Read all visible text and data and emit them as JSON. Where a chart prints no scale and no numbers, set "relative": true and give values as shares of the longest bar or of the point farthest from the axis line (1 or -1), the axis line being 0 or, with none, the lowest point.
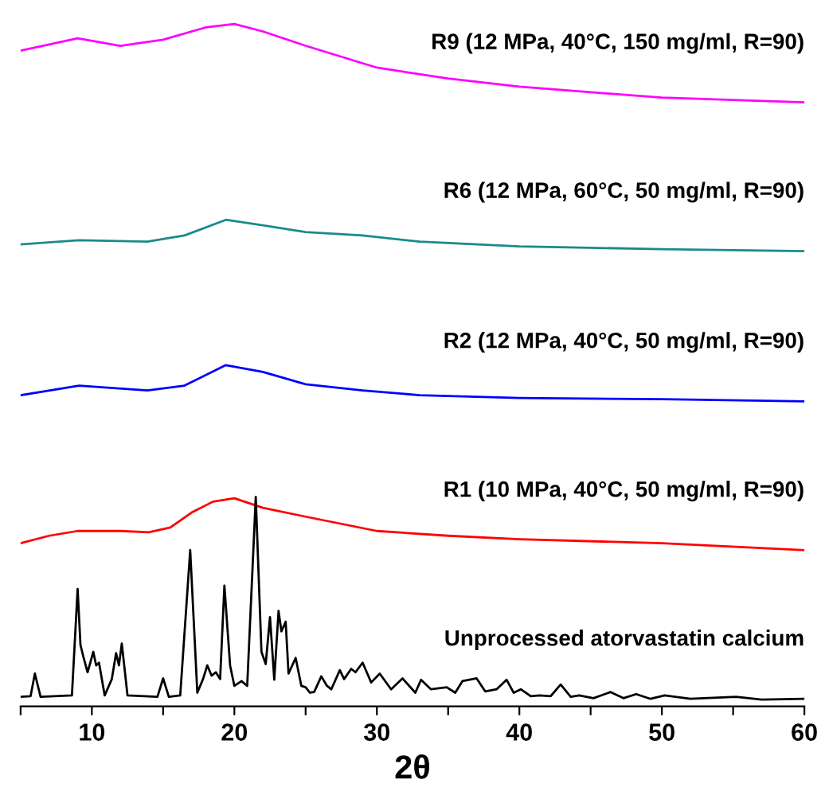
{
  "chart_data": {
    "type": "line",
    "relative": true,
    "xlabel": "2θ",
    "xlim": [
      5,
      60
    ],
    "xticks": [
      {
        "value": 5,
        "label": null
      },
      10,
      {
        "value": 15,
        "label": null
      },
      20,
      {
        "value": 25,
        "label": null
      },
      30,
      {
        "value": 35,
        "label": null
      },
      40,
      {
        "value": 45,
        "label": null
      },
      50,
      {
        "value": 55,
        "label": null
      },
      60
    ],
    "grid": false,
    "legend": false,
    "marker": "none",
    "line_style": "solid",
    "series": [
      {
        "name": "R9 (12 MPa, 40°C, 150 mg/ml, R=90)",
        "color": "#ff00ff",
        "x": [
          5,
          9,
          12,
          15,
          18,
          20,
          22,
          25,
          30,
          35,
          40,
          50,
          60
        ],
        "values": [
          0.961,
          0.979,
          0.968,
          0.977,
          0.995,
          1.0,
          0.989,
          0.968,
          0.936,
          0.92,
          0.908,
          0.892,
          0.885
        ]
      },
      {
        "name": "R6 (12 MPa, 60°C, 50 mg/ml, R=90)",
        "color": "#1a8a8a",
        "x": [
          5,
          9.1,
          13.9,
          16.5,
          19.4,
          22,
          25,
          29,
          33,
          40,
          50,
          60
        ],
        "values": [
          0.677,
          0.683,
          0.681,
          0.69,
          0.713,
          0.705,
          0.695,
          0.69,
          0.681,
          0.674,
          0.67,
          0.667
        ]
      },
      {
        "name": "R2 (12 MPa, 40°C, 50 mg/ml, R=90)",
        "color": "#0000ff",
        "x": [
          5,
          9.1,
          13.9,
          16.5,
          19.4,
          22,
          25,
          29,
          33,
          40,
          50,
          60
        ],
        "values": [
          0.456,
          0.47,
          0.463,
          0.47,
          0.5,
          0.49,
          0.472,
          0.463,
          0.456,
          0.452,
          0.45,
          0.447
        ]
      },
      {
        "name": "R1 (10 MPa, 40°C, 50 mg/ml, R=90)",
        "color": "#ff0000",
        "x": [
          5,
          7,
          9,
          12,
          14,
          15.5,
          17,
          18.5,
          20,
          22,
          25,
          30,
          35,
          40,
          50,
          60
        ],
        "values": [
          0.239,
          0.25,
          0.257,
          0.257,
          0.255,
          0.262,
          0.284,
          0.3,
          0.305,
          0.291,
          0.278,
          0.257,
          0.25,
          0.245,
          0.239,
          0.229
        ]
      },
      {
        "name": "Unprocessed atorvastatin calcium",
        "color": "#000000",
        "x": [
          5.0,
          5.7,
          6.0,
          6.4,
          8.6,
          9.0,
          9.2,
          9.4,
          9.7,
          10.1,
          10.3,
          10.5,
          10.9,
          11.4,
          11.7,
          11.9,
          12.1,
          12.5,
          14.6,
          15.0,
          15.4,
          16.2,
          16.9,
          17.4,
          17.8,
          18.1,
          18.4,
          18.7,
          19.0,
          19.3,
          19.7,
          20.0,
          20.5,
          20.9,
          21.5,
          21.9,
          22.2,
          22.5,
          22.8,
          23.1,
          23.3,
          23.6,
          23.8,
          24.3,
          24.7,
          25.0,
          25.3,
          25.6,
          26.1,
          26.5,
          26.8,
          27.4,
          27.7,
          28.2,
          28.5,
          29.0,
          29.6,
          30.2,
          31.0,
          31.8,
          32.7,
          33.1,
          33.8,
          34.9,
          35.5,
          36.0,
          37.0,
          37.6,
          38.4,
          39.1,
          39.6,
          40.1,
          40.8,
          41.4,
          42.2,
          42.9,
          43.6,
          44.2,
          45.2,
          46.4,
          47.3,
          48.2,
          49.2,
          50.2,
          52,
          55.2,
          57,
          60
        ],
        "values": [
          0.014,
          0.015,
          0.048,
          0.014,
          0.016,
          0.172,
          0.09,
          0.073,
          0.05,
          0.08,
          0.06,
          0.064,
          0.016,
          0.04,
          0.078,
          0.06,
          0.092,
          0.016,
          0.014,
          0.041,
          0.014,
          0.016,
          0.229,
          0.02,
          0.04,
          0.06,
          0.045,
          0.05,
          0.04,
          0.177,
          0.06,
          0.03,
          0.037,
          0.03,
          0.307,
          0.08,
          0.062,
          0.131,
          0.039,
          0.14,
          0.11,
          0.124,
          0.048,
          0.071,
          0.03,
          0.028,
          0.02,
          0.021,
          0.044,
          0.03,
          0.025,
          0.053,
          0.04,
          0.055,
          0.05,
          0.064,
          0.035,
          0.048,
          0.025,
          0.041,
          0.02,
          0.039,
          0.025,
          0.028,
          0.02,
          0.037,
          0.041,
          0.022,
          0.025,
          0.039,
          0.02,
          0.025,
          0.015,
          0.016,
          0.015,
          0.032,
          0.014,
          0.016,
          0.012,
          0.021,
          0.012,
          0.018,
          0.011,
          0.016,
          0.011,
          0.014,
          0.01,
          0.011
        ]
      }
    ]
  }
}
